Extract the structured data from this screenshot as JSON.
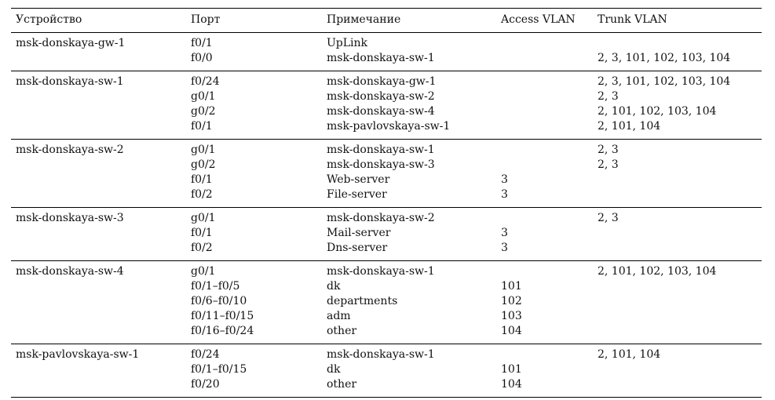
{
  "headers": {
    "device": "Устройство",
    "port": "Порт",
    "note": "Примечание",
    "access_vlan": "Access VLAN",
    "trunk_vlan": "Trunk VLAN"
  },
  "groups": [
    {
      "device": "msk-donskaya-gw-1",
      "rows": [
        {
          "port": "f0/1",
          "note": "UpLink",
          "access": "",
          "trunk": ""
        },
        {
          "port": "f0/0",
          "note": "msk-donskaya-sw-1",
          "access": "",
          "trunk": "2, 3, 101, 102, 103, 104"
        }
      ]
    },
    {
      "device": "msk-donskaya-sw-1",
      "rows": [
        {
          "port": "f0/24",
          "note": "msk-donskaya-gw-1",
          "access": "",
          "trunk": "2, 3, 101, 102, 103, 104"
        },
        {
          "port": "g0/1",
          "note": "msk-donskaya-sw-2",
          "access": "",
          "trunk": "2, 3"
        },
        {
          "port": "g0/2",
          "note": "msk-donskaya-sw-4",
          "access": "",
          "trunk": "2, 101, 102, 103, 104"
        },
        {
          "port": "f0/1",
          "note": "msk-pavlovskaya-sw-1",
          "access": "",
          "trunk": "2, 101, 104"
        }
      ]
    },
    {
      "device": "msk-donskaya-sw-2",
      "rows": [
        {
          "port": "g0/1",
          "note": "msk-donskaya-sw-1",
          "access": "",
          "trunk": "2, 3"
        },
        {
          "port": "g0/2",
          "note": "msk-donskaya-sw-3",
          "access": "",
          "trunk": "2, 3"
        },
        {
          "port": "f0/1",
          "note": "Web-server",
          "access": "3",
          "trunk": ""
        },
        {
          "port": "f0/2",
          "note": "File-server",
          "access": "3",
          "trunk": ""
        }
      ]
    },
    {
      "device": "msk-donskaya-sw-3",
      "rows": [
        {
          "port": "g0/1",
          "note": "msk-donskaya-sw-2",
          "access": "",
          "trunk": "2, 3"
        },
        {
          "port": "f0/1",
          "note": "Mail-server",
          "access": "3",
          "trunk": ""
        },
        {
          "port": "f0/2",
          "note": "Dns-server",
          "access": "3",
          "trunk": ""
        }
      ]
    },
    {
      "device": "msk-donskaya-sw-4",
      "rows": [
        {
          "port": "g0/1",
          "note": "msk-donskaya-sw-1",
          "access": "",
          "trunk": "2, 101, 102, 103, 104"
        },
        {
          "port": "f0/1–f0/5",
          "note": "dk",
          "access": "101",
          "trunk": ""
        },
        {
          "port": "f0/6–f0/10",
          "note": "departments",
          "access": "102",
          "trunk": ""
        },
        {
          "port": "f0/11–f0/15",
          "note": "adm",
          "access": "103",
          "trunk": ""
        },
        {
          "port": "f0/16–f0/24",
          "note": "other",
          "access": "104",
          "trunk": ""
        }
      ]
    },
    {
      "device": "msk-pavlovskaya-sw-1",
      "rows": [
        {
          "port": "f0/24",
          "note": "msk-donskaya-sw-1",
          "access": "",
          "trunk": "2, 101, 104"
        },
        {
          "port": "f0/1–f0/15",
          "note": "dk",
          "access": "101",
          "trunk": ""
        },
        {
          "port": "f0/20",
          "note": "other",
          "access": "104",
          "trunk": ""
        }
      ]
    }
  ]
}
